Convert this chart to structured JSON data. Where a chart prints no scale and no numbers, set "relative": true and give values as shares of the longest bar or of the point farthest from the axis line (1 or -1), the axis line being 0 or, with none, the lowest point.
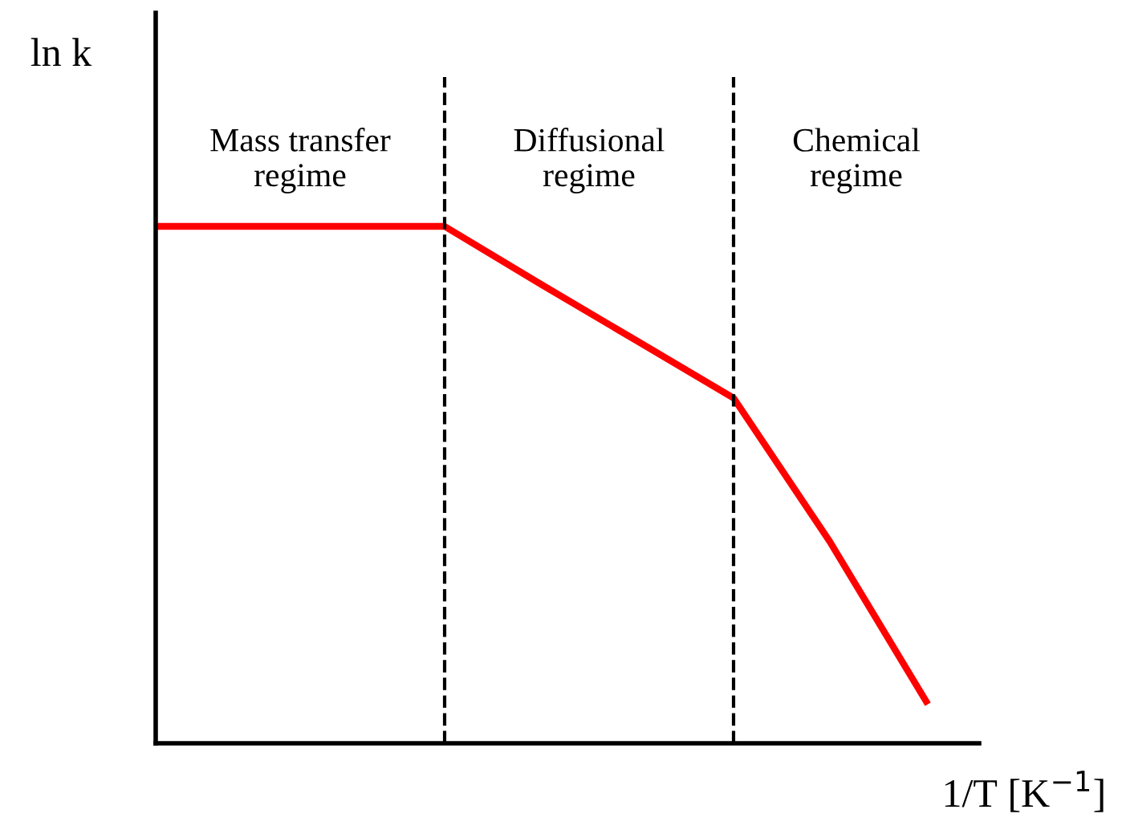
{
  "chart_data": {
    "type": "line",
    "relative": true,
    "xlabel": "1/T [K$^{−1}$]",
    "ylabel": "ln k",
    "categories": [
      null,
      null,
      null,
      null,
      null,
      null,
      null,
      null,
      null
    ],
    "series": [
      {
        "color": "#ff0000",
        "values": [
          1,
          1,
          1,
          1,
          0.888,
          0.778,
          0.668,
          0.39,
          0.081
        ]
      }
    ],
    "annotations": [
      "Mass transfer\nregime",
      "Diffusional\nregime",
      "Chemical\nregime"
    ],
    "line_style": "solid"
  }
}
